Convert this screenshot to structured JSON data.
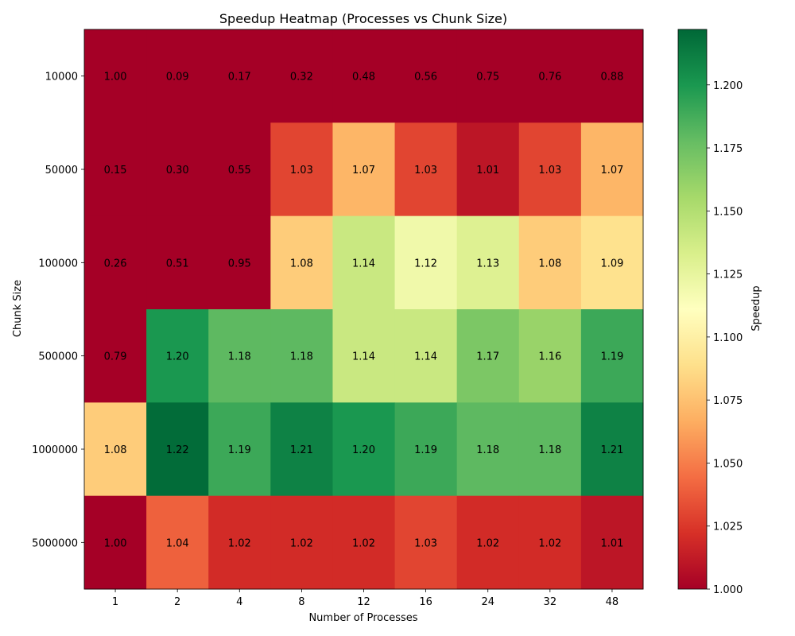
{
  "chart_data": {
    "type": "heatmap",
    "title": "Speedup Heatmap (Processes vs Chunk Size)",
    "xlabel": "Number of Processes",
    "ylabel": "Chunk Size",
    "x_categories": [
      "1",
      "2",
      "4",
      "8",
      "12",
      "16",
      "24",
      "32",
      "48"
    ],
    "y_categories": [
      "10000",
      "50000",
      "100000",
      "500000",
      "1000000",
      "5000000"
    ],
    "values": [
      [
        1.0,
        0.09,
        0.17,
        0.32,
        0.48,
        0.56,
        0.75,
        0.76,
        0.88
      ],
      [
        0.15,
        0.3,
        0.55,
        1.03,
        1.07,
        1.03,
        1.01,
        1.03,
        1.07
      ],
      [
        0.26,
        0.51,
        0.95,
        1.08,
        1.14,
        1.12,
        1.13,
        1.08,
        1.09
      ],
      [
        0.79,
        1.2,
        1.18,
        1.18,
        1.14,
        1.14,
        1.17,
        1.16,
        1.19
      ],
      [
        1.08,
        1.22,
        1.19,
        1.21,
        1.2,
        1.19,
        1.18,
        1.18,
        1.21
      ],
      [
        1.0,
        1.04,
        1.02,
        1.02,
        1.02,
        1.03,
        1.02,
        1.02,
        1.01
      ]
    ],
    "value_labels": [
      [
        "1.00",
        "0.09",
        "0.17",
        "0.32",
        "0.48",
        "0.56",
        "0.75",
        "0.76",
        "0.88"
      ],
      [
        "0.15",
        "0.30",
        "0.55",
        "1.03",
        "1.07",
        "1.03",
        "1.01",
        "1.03",
        "1.07"
      ],
      [
        "0.26",
        "0.51",
        "0.95",
        "1.08",
        "1.14",
        "1.12",
        "1.13",
        "1.08",
        "1.09"
      ],
      [
        "0.79",
        "1.20",
        "1.18",
        "1.18",
        "1.14",
        "1.14",
        "1.17",
        "1.16",
        "1.19"
      ],
      [
        "1.08",
        "1.22",
        "1.19",
        "1.21",
        "1.20",
        "1.19",
        "1.18",
        "1.18",
        "1.21"
      ],
      [
        "1.00",
        "1.04",
        "1.02",
        "1.02",
        "1.02",
        "1.03",
        "1.02",
        "1.02",
        "1.01"
      ]
    ],
    "colormap": "RdYlGn",
    "vmin": 1.0,
    "vmax": 1.222,
    "colorbar": {
      "label": "Speedup",
      "ticks": [
        "1.000",
        "1.025",
        "1.050",
        "1.075",
        "1.100",
        "1.125",
        "1.150",
        "1.175",
        "1.200"
      ],
      "tick_values": [
        1.0,
        1.025,
        1.05,
        1.075,
        1.1,
        1.125,
        1.15,
        1.175,
        1.2
      ]
    },
    "grid": false
  }
}
